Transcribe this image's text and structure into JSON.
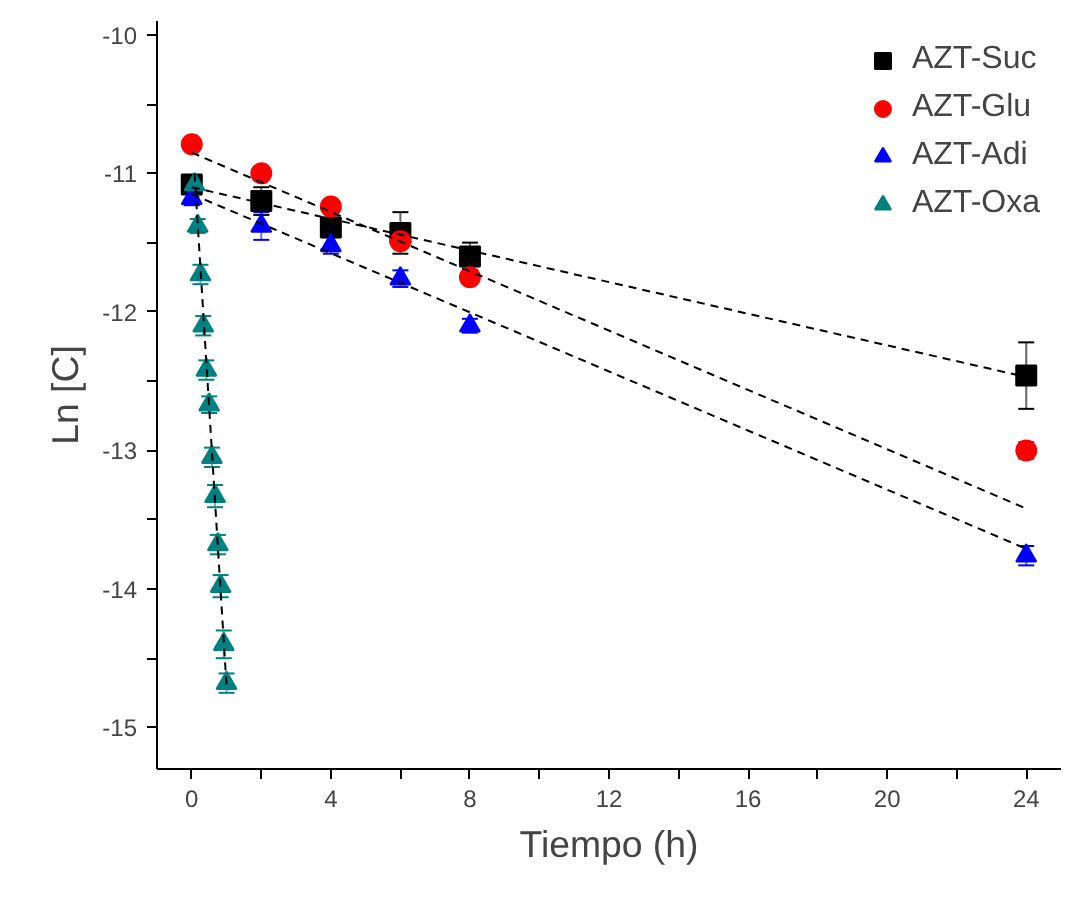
{
  "chart_data": {
    "type": "scatter",
    "xlabel": "Tiempo (h)",
    "ylabel": "Ln [C]",
    "xlim": [
      -1,
      25
    ],
    "ylim": [
      -15.3,
      -9.9
    ],
    "xticks": [
      0,
      {
        "value": 2,
        "label": null
      },
      4,
      {
        "value": 6,
        "label": null
      },
      8,
      {
        "value": 10,
        "label": null
      },
      12,
      {
        "value": 14,
        "label": null
      },
      16,
      {
        "value": 18,
        "label": null
      },
      20,
      {
        "value": 22,
        "label": null
      },
      24
    ],
    "yticks": [
      -15,
      {
        "value": -14.5,
        "label": null
      },
      -14,
      {
        "value": -13.5,
        "label": null
      },
      -13,
      {
        "value": -12.5,
        "label": null
      },
      -12,
      {
        "value": -11.5,
        "label": null
      },
      -11,
      {
        "value": -10.5,
        "label": null
      },
      -10
    ],
    "grid": false,
    "legend": "top right",
    "series": [
      {
        "name": "AZT-Suc",
        "color": "#000000",
        "marker": "square",
        "x": [
          0,
          2,
          4,
          6,
          8,
          24
        ],
        "values": [
          -11.08,
          -11.2,
          -11.39,
          -11.43,
          -11.6,
          -12.46
        ],
        "errors": [
          0.05,
          0.1,
          0.07,
          0.15,
          0.1,
          0.24
        ]
      },
      {
        "name": "AZT-Glu",
        "color": "#ff0000",
        "marker": "circle",
        "x": [
          0,
          2,
          4,
          6,
          8,
          24
        ],
        "values": [
          -10.79,
          -11.0,
          -11.24,
          -11.49,
          -11.75,
          -13.0
        ],
        "errors": [
          null,
          null,
          null,
          null,
          null,
          0.06
        ]
      },
      {
        "name": "AZT-Adi",
        "color": "#0000ff",
        "marker": "triangle",
        "x": [
          0,
          2,
          4,
          6,
          8,
          24
        ],
        "values": [
          -11.18,
          -11.38,
          -11.52,
          -11.76,
          -12.1,
          -13.76
        ],
        "errors": [
          0.05,
          0.1,
          0.06,
          0.06,
          0.05,
          0.07
        ]
      },
      {
        "name": "AZT-Oxa",
        "color": "#008080",
        "marker": "triangle",
        "x": [
          0.08,
          0.17,
          0.25,
          0.33,
          0.42,
          0.5,
          0.58,
          0.67,
          0.75,
          0.83,
          0.92,
          1.0
        ],
        "values": [
          -11.08,
          -11.38,
          -11.73,
          -12.1,
          -12.42,
          -12.67,
          -13.05,
          -13.33,
          -13.68,
          -13.98,
          -14.4,
          -14.68
        ],
        "errors": [
          0.05,
          0.05,
          0.07,
          0.07,
          0.07,
          0.06,
          0.07,
          0.08,
          0.07,
          0.08,
          0.1,
          0.07
        ]
      },
      {
        "type": "line",
        "color": "#000000",
        "line_style": "dashed",
        "x": [
          0,
          24
        ],
        "values": [
          -11.1,
          -12.47
        ]
      },
      {
        "type": "line",
        "color": "#000000",
        "line_style": "dashed",
        "x": [
          0,
          24
        ],
        "values": [
          -10.85,
          -13.42
        ]
      },
      {
        "type": "line",
        "color": "#000000",
        "line_style": "dashed",
        "x": [
          0,
          24
        ],
        "values": [
          -11.15,
          -13.71
        ]
      },
      {
        "type": "line",
        "color": "#000000",
        "line_style": "dashed",
        "x": [
          0.08,
          1.0
        ],
        "values": [
          -11.0,
          -14.7
        ]
      }
    ]
  }
}
